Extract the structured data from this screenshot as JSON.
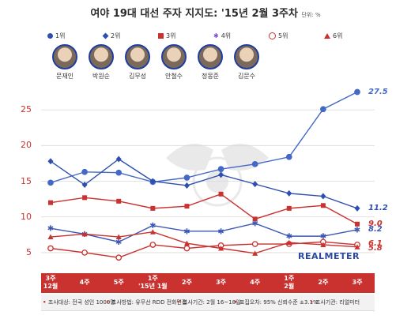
{
  "title": "여야 19대 대선 주자 지지도: '15년 2월 3주차",
  "unit": "단위: %",
  "legend": [
    {
      "label": "1위",
      "color": "#2f4fb0",
      "shape": "circle"
    },
    {
      "label": "2위",
      "color": "#2f4fb0",
      "shape": "diamond"
    },
    {
      "label": "3위",
      "color": "#c9322f",
      "shape": "square"
    },
    {
      "label": "4위",
      "color": "#7a4ad0",
      "shape": "star"
    },
    {
      "label": "5위",
      "color": "#c9322f",
      "shape": "circle-open"
    },
    {
      "label": "6위",
      "color": "#c9322f",
      "shape": "triangle"
    }
  ],
  "candidates": [
    "문재인",
    "박원순",
    "김무성",
    "안철수",
    "정몽준",
    "김문수"
  ],
  "brand": "REALMETER",
  "footnotes": [
    "조사대상: 전국 성인 1000명",
    "조사방법: 유무선 RDD 전화면접",
    "조사기간: 2월 16~18일",
    "표집오차: 95% 신뢰수준 ±3.1%",
    "조사기관: 리얼미터"
  ],
  "chart_data": {
    "type": "line",
    "categories": [
      [
        "3주",
        "12월"
      ],
      [
        "4주",
        ""
      ],
      [
        "5주",
        ""
      ],
      [
        "1주",
        "'15년 1월"
      ],
      [
        "2주",
        ""
      ],
      [
        "3주",
        ""
      ],
      [
        "4주",
        ""
      ],
      [
        "1주",
        "2월"
      ],
      [
        "2주",
        ""
      ],
      [
        "3주",
        ""
      ]
    ],
    "ylim": [
      3,
      28
    ],
    "yticks": [
      5,
      10,
      15,
      20,
      25
    ],
    "series": [
      {
        "color": "#4468c6",
        "marker": "circle",
        "values": [
          14.8,
          16.3,
          16.2,
          14.9,
          15.5,
          16.7,
          17.4,
          18.4,
          25.1,
          27.5
        ],
        "end_label": "27.5"
      },
      {
        "color": "#2f4fb0",
        "marker": "diamond",
        "values": [
          17.8,
          14.5,
          18.1,
          15.0,
          14.4,
          15.9,
          14.6,
          13.3,
          12.9,
          11.2
        ],
        "end_label": "11.2"
      },
      {
        "color": "#c9322f",
        "marker": "square",
        "values": [
          12.0,
          12.7,
          12.2,
          11.2,
          11.5,
          13.2,
          9.7,
          11.2,
          11.6,
          9.0
        ],
        "end_label": "9.0"
      },
      {
        "color": "#3b57b5",
        "marker": "star",
        "values": [
          8.4,
          7.6,
          6.5,
          8.8,
          8.0,
          8.0,
          9.1,
          7.3,
          7.3,
          8.2
        ],
        "end_label": "8.2"
      },
      {
        "color": "#c9322f",
        "marker": "circle-open",
        "values": [
          5.6,
          5.0,
          4.3,
          6.1,
          5.6,
          6.0,
          6.2,
          6.2,
          6.5,
          6.1
        ],
        "end_label": "6.1"
      },
      {
        "color": "#c9322f",
        "marker": "triangle",
        "values": [
          7.2,
          7.6,
          7.2,
          7.9,
          6.3,
          5.6,
          4.9,
          6.4,
          6.1,
          5.8
        ],
        "end_label": "5.8"
      }
    ]
  }
}
